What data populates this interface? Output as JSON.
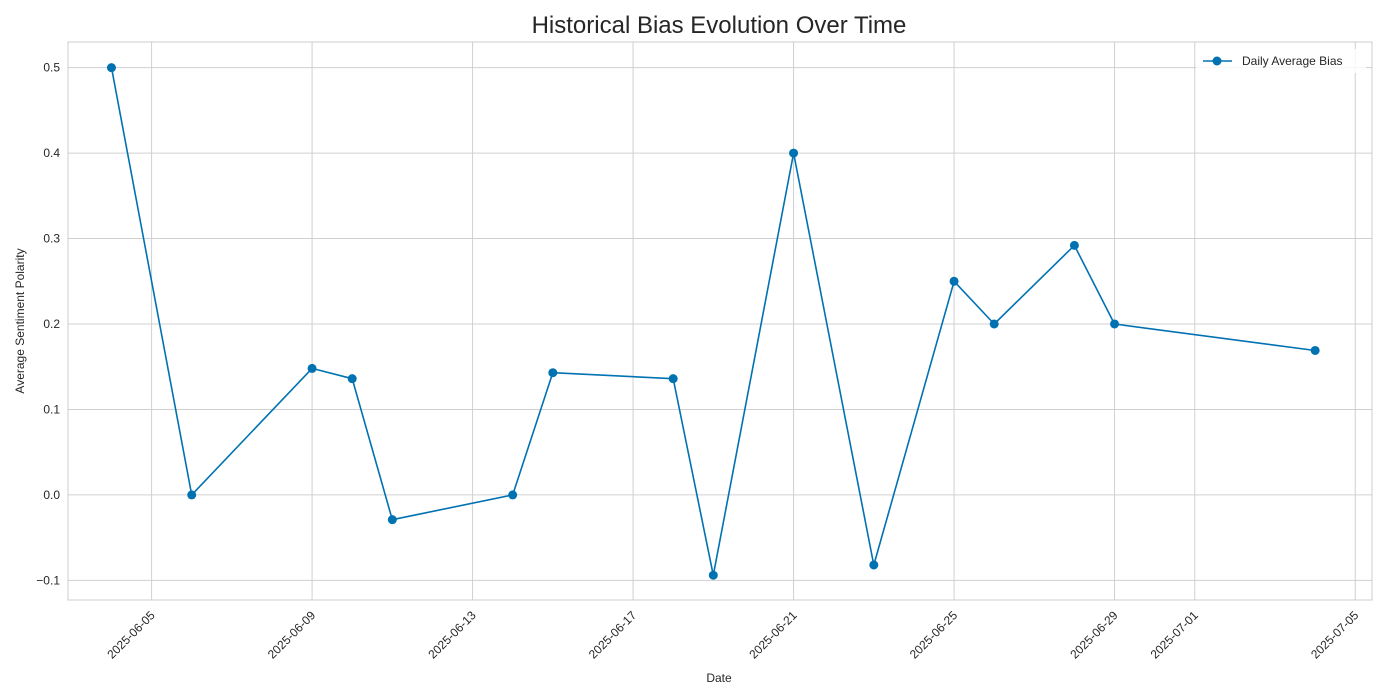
{
  "chart_data": {
    "type": "line",
    "title": "Historical Bias Evolution Over Time",
    "xlabel": "Date",
    "ylabel": "Average Sentiment Polarity",
    "grid": true,
    "legend_position": "top-right",
    "ylim": [
      -0.123,
      0.53
    ],
    "xlim": [
      "2025-06-02T22:00",
      "2025-07-05T10:00"
    ],
    "y_ticks": [
      -0.1,
      0.0,
      0.1,
      0.2,
      0.3,
      0.4,
      0.5
    ],
    "y_tick_labels": [
      "−0.1",
      "0.0",
      "0.1",
      "0.2",
      "0.3",
      "0.4",
      "0.5"
    ],
    "x_ticks": [
      "2025-06-05",
      "2025-06-09",
      "2025-06-13",
      "2025-06-17",
      "2025-06-21",
      "2025-06-25",
      "2025-06-29",
      "2025-07-01",
      "2025-07-05"
    ],
    "x_tick_labels": [
      "2025-06-05",
      "2025-06-09",
      "2025-06-13",
      "2025-06-17",
      "2025-06-21",
      "2025-06-25",
      "2025-06-29",
      "2025-07-01",
      "2025-07-05"
    ],
    "series": [
      {
        "name": "Daily Average Bias",
        "color": "#0072b2",
        "marker": "circle",
        "x": [
          "2025-06-04",
          "2025-06-06",
          "2025-06-09",
          "2025-06-10",
          "2025-06-11",
          "2025-06-14",
          "2025-06-15",
          "2025-06-18",
          "2025-06-19",
          "2025-06-21",
          "2025-06-23",
          "2025-06-25",
          "2025-06-26",
          "2025-06-28",
          "2025-06-29",
          "2025-07-04"
        ],
        "values": [
          0.5,
          0.0,
          0.148,
          0.136,
          -0.029,
          0.0,
          0.143,
          0.136,
          -0.094,
          0.4,
          -0.082,
          0.25,
          0.2,
          0.292,
          0.2,
          0.169
        ]
      }
    ]
  }
}
